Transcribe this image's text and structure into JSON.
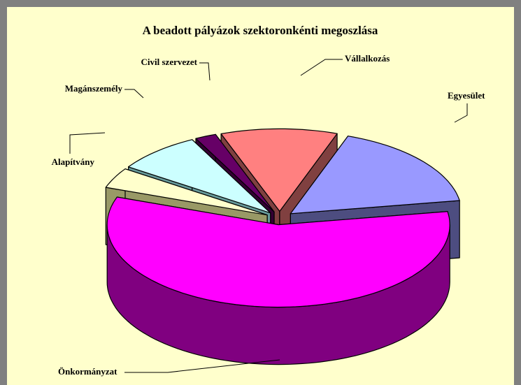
{
  "chart_data": {
    "type": "pie3d",
    "title": "A beadott pályázok szektoronkénti megoszlása",
    "categories": [
      "Vállalkozás",
      "Egyesület",
      "Önkormányzat",
      "Alapítvány",
      "Magánszemély",
      "Civil szervezet"
    ],
    "values": [
      11,
      17,
      58,
      4,
      8,
      2
    ],
    "colors": [
      "#ff8080",
      "#9999ff",
      "#ff00ff",
      "#ffffcc",
      "#ccffff",
      "#660066"
    ],
    "side_colors": [
      "#804040",
      "#4d4d80",
      "#800080",
      "#999966",
      "#669999",
      "#330033"
    ]
  }
}
